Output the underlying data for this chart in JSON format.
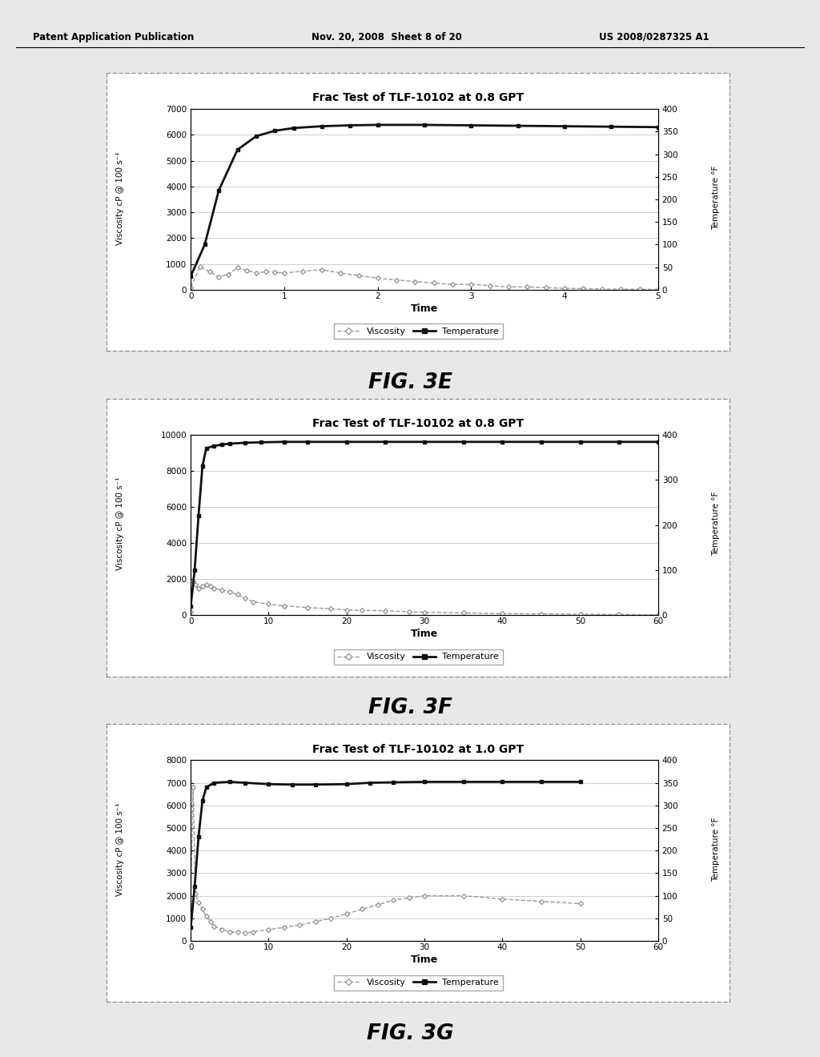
{
  "fig3e": {
    "title": "Frac Test of TLF-10102 at 0.8 GPT",
    "xlabel": "Time",
    "ylabel_left": "Viscosity cP @ 100 s⁻¹",
    "ylabel_right": "Temperature °F",
    "xlim": [
      0,
      5
    ],
    "xticks": [
      0,
      1,
      2,
      3,
      4,
      5
    ],
    "ylim_left": [
      0,
      7000
    ],
    "yticks_left": [
      0,
      1000,
      2000,
      3000,
      4000,
      5000,
      6000,
      7000
    ],
    "ylim_right": [
      0,
      400
    ],
    "yticks_right": [
      0,
      50,
      100,
      150,
      200,
      250,
      300,
      350,
      400
    ],
    "temp_x": [
      0,
      0.15,
      0.3,
      0.5,
      0.7,
      0.9,
      1.1,
      1.4,
      1.7,
      2.0,
      2.5,
      3.0,
      3.5,
      4.0,
      4.5,
      5.0
    ],
    "temp_y": [
      30,
      100,
      220,
      310,
      340,
      352,
      358,
      362,
      364,
      365,
      365,
      364,
      363,
      362,
      361,
      360
    ],
    "visc_x": [
      0,
      0.1,
      0.2,
      0.3,
      0.4,
      0.5,
      0.6,
      0.7,
      0.8,
      0.9,
      1.0,
      1.2,
      1.4,
      1.6,
      1.8,
      2.0,
      2.2,
      2.4,
      2.6,
      2.8,
      3.0,
      3.2,
      3.4,
      3.6,
      3.8,
      4.0,
      4.2,
      4.4,
      4.6,
      4.8,
      5.0
    ],
    "visc_y": [
      100,
      900,
      700,
      500,
      600,
      850,
      750,
      650,
      700,
      680,
      650,
      720,
      780,
      650,
      550,
      450,
      380,
      320,
      260,
      210,
      210,
      160,
      110,
      110,
      85,
      55,
      45,
      32,
      22,
      16,
      10
    ],
    "temp_color": "#111111",
    "visc_color": "#999999"
  },
  "fig3f": {
    "title": "Frac Test of TLF-10102 at 0.8 GPT",
    "xlabel": "Time",
    "ylabel_left": "Viscosity cP @ 100 s⁻¹",
    "ylabel_right": "Temperature °F",
    "xlim": [
      0,
      60
    ],
    "xticks": [
      0,
      10,
      20,
      30,
      40,
      50,
      60
    ],
    "ylim_left": [
      0,
      10000
    ],
    "yticks_left": [
      0,
      2000,
      4000,
      6000,
      8000,
      10000
    ],
    "ylim_right": [
      0,
      400
    ],
    "yticks_right": [
      0,
      100,
      200,
      300,
      400
    ],
    "temp_x": [
      0,
      0.5,
      1.0,
      1.5,
      2.0,
      3.0,
      4.0,
      5.0,
      7.0,
      9.0,
      12.0,
      15.0,
      20.0,
      25.0,
      30.0,
      35.0,
      40.0,
      45.0,
      50.0,
      55.0,
      60.0
    ],
    "temp_y": [
      20,
      100,
      220,
      330,
      370,
      375,
      378,
      380,
      382,
      383,
      384,
      384,
      384,
      384,
      384,
      384,
      384,
      384,
      384,
      384,
      384
    ],
    "visc_x": [
      0,
      0.3,
      0.6,
      1.0,
      1.5,
      2.0,
      2.5,
      3.0,
      4.0,
      5.0,
      6.0,
      7.0,
      8.0,
      10.0,
      12.0,
      15.0,
      18.0,
      20.0,
      22.0,
      25.0,
      28.0,
      30.0,
      35.0,
      40.0,
      45.0,
      50.0,
      55.0,
      60.0
    ],
    "visc_y": [
      200,
      1900,
      1700,
      1500,
      1600,
      1700,
      1600,
      1500,
      1400,
      1300,
      1150,
      950,
      750,
      620,
      520,
      430,
      360,
      300,
      280,
      250,
      200,
      170,
      130,
      100,
      80,
      60,
      45,
      30
    ],
    "temp_color": "#111111",
    "visc_color": "#999999"
  },
  "fig3g": {
    "title": "Frac Test of TLF-10102 at 1.0 GPT",
    "xlabel": "Time",
    "ylabel_left": "Viscosity cP @ 100 s⁻¹",
    "ylabel_right": "Temperature °F",
    "xlim": [
      0,
      60
    ],
    "xticks": [
      0,
      10,
      20,
      30,
      40,
      50,
      60
    ],
    "ylim_left": [
      0,
      8000
    ],
    "yticks_left": [
      0,
      1000,
      2000,
      3000,
      4000,
      5000,
      6000,
      7000,
      8000
    ],
    "ylim_right": [
      0,
      400
    ],
    "yticks_right": [
      0,
      50,
      100,
      150,
      200,
      250,
      300,
      350,
      400
    ],
    "temp_x": [
      0,
      0.5,
      1.0,
      1.5,
      2.0,
      3.0,
      5.0,
      7.0,
      10.0,
      13.0,
      16.0,
      20.0,
      23.0,
      26.0,
      30.0,
      35.0,
      40.0,
      45.0,
      50.0
    ],
    "temp_y": [
      30,
      120,
      230,
      310,
      340,
      350,
      352,
      350,
      347,
      346,
      346,
      347,
      350,
      351,
      352,
      352,
      352,
      352,
      352
    ],
    "visc_x": [
      0,
      0.3,
      0.6,
      1.0,
      1.5,
      2.0,
      2.5,
      3.0,
      4.0,
      5.0,
      6.0,
      7.0,
      8.0,
      10.0,
      12.0,
      14.0,
      16.0,
      18.0,
      20.0,
      22.0,
      24.0,
      26.0,
      28.0,
      30.0,
      35.0,
      40.0,
      45.0,
      50.0
    ],
    "visc_y": [
      1700,
      6800,
      2100,
      1700,
      1400,
      1100,
      850,
      650,
      500,
      400,
      380,
      350,
      400,
      500,
      600,
      700,
      850,
      1000,
      1200,
      1400,
      1600,
      1800,
      1900,
      2000,
      2000,
      1850,
      1750,
      1650
    ],
    "temp_color": "#111111",
    "visc_color": "#999999"
  },
  "overall_bg": "#e8e8e8",
  "panel_bg": "#ffffff",
  "panel_border": "#aaaaaa"
}
